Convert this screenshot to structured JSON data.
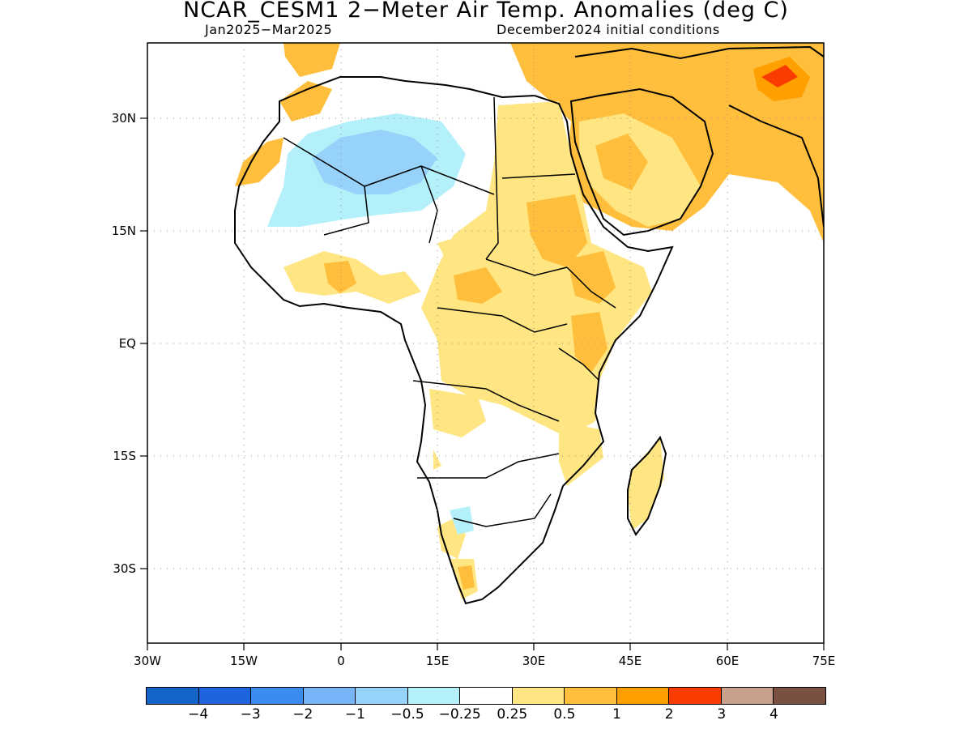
{
  "title": "NCAR_CESM1 2−Meter Air Temp. Anomalies (deg C)",
  "subtitle_left": "Jan2025−Mar2025",
  "subtitle_right": "December2024 initial conditions",
  "map": {
    "lon_range": [
      -30,
      75
    ],
    "lat_range": [
      -40,
      40
    ],
    "x_ticks": [
      "30W",
      "15W",
      "0",
      "15E",
      "30E",
      "45E",
      "60E",
      "75E"
    ],
    "y_ticks": [
      "30N",
      "15N",
      "EQ",
      "15S",
      "30S"
    ],
    "grid": "dotted"
  },
  "colorbar": {
    "colors": [
      "#1565c8",
      "#1e64dc",
      "#3c8cf0",
      "#78b4f8",
      "#96d2fa",
      "#b4f0fa",
      "#ffffff",
      "#ffe682",
      "#ffbe3c",
      "#ffa000",
      "#fa3c00",
      "#c8a08c",
      "#7a5040"
    ],
    "labels": [
      "−4",
      "−3",
      "−2",
      "−1",
      "−0.5",
      "−0.25",
      "0.25",
      "0.5",
      "1",
      "2",
      "3",
      "4"
    ]
  }
}
